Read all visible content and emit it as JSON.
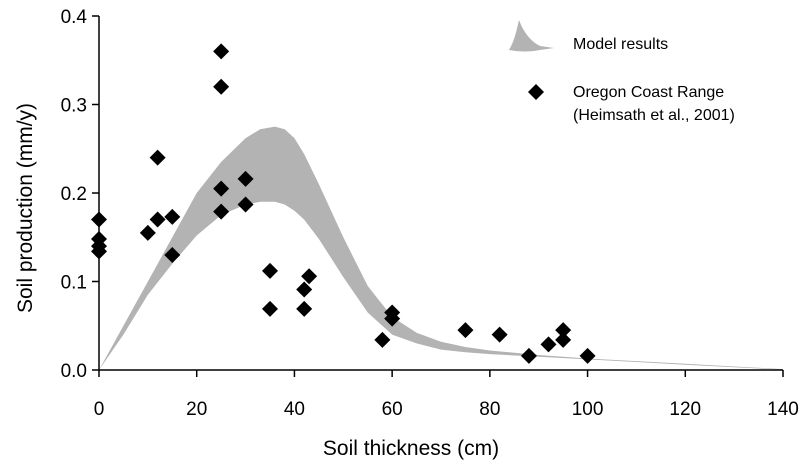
{
  "chart_data": {
    "type": "scatter",
    "xlabel": "Soil thickness (cm)",
    "ylabel": "Soil production (mm/y)",
    "xlim": [
      0,
      140
    ],
    "ylim": [
      0,
      0.4
    ],
    "xticks": [
      "0",
      "20",
      "40",
      "60",
      "80",
      "100",
      "120",
      "140"
    ],
    "yticks": [
      "0.0",
      "0.1",
      "0.2",
      "0.3",
      "0.4"
    ],
    "grid": false,
    "legend_position": "top-right",
    "series": [
      {
        "name": "Model results",
        "kind": "band",
        "color": "#b3b3b3",
        "x": [
          0,
          5,
          10,
          15,
          20,
          25,
          30,
          33,
          36,
          38,
          40,
          42,
          45,
          50,
          55,
          60,
          65,
          70,
          75,
          80,
          90,
          100,
          110,
          120,
          130,
          140
        ],
        "upper": [
          0,
          0.05,
          0.1,
          0.15,
          0.2,
          0.235,
          0.262,
          0.272,
          0.275,
          0.272,
          0.262,
          0.244,
          0.21,
          0.15,
          0.095,
          0.06,
          0.042,
          0.032,
          0.026,
          0.022,
          0.017,
          0.013,
          0.01,
          0.007,
          0.004,
          0.001
        ],
        "lower": [
          0,
          0.04,
          0.085,
          0.12,
          0.152,
          0.175,
          0.187,
          0.19,
          0.19,
          0.187,
          0.18,
          0.17,
          0.148,
          0.105,
          0.065,
          0.04,
          0.03,
          0.023,
          0.02,
          0.018,
          0.015,
          0.012,
          0.009,
          0.006,
          0.003,
          0.0005
        ]
      },
      {
        "name": "Oregon Coast Range\n(Heimsath et al., 2001)",
        "name_lines": [
          "Oregon Coast Range",
          "(Heimsath et al., 2001)"
        ],
        "kind": "points",
        "marker": "diamond",
        "color": "#000000",
        "points": [
          [
            0,
            0.17
          ],
          [
            0,
            0.148
          ],
          [
            0,
            0.14
          ],
          [
            0,
            0.134
          ],
          [
            10,
            0.155
          ],
          [
            12,
            0.24
          ],
          [
            12,
            0.17
          ],
          [
            15,
            0.173
          ],
          [
            15,
            0.13
          ],
          [
            25,
            0.36
          ],
          [
            25,
            0.32
          ],
          [
            25,
            0.205
          ],
          [
            25,
            0.179
          ],
          [
            30,
            0.216
          ],
          [
            30,
            0.187
          ],
          [
            35,
            0.112
          ],
          [
            35,
            0.069
          ],
          [
            42,
            0.091
          ],
          [
            42,
            0.069
          ],
          [
            43,
            0.106
          ],
          [
            58,
            0.034
          ],
          [
            60,
            0.065
          ],
          [
            60,
            0.058
          ],
          [
            75,
            0.045
          ],
          [
            82,
            0.04
          ],
          [
            88,
            0.016
          ],
          [
            92,
            0.029
          ],
          [
            95,
            0.045
          ],
          [
            95,
            0.034
          ],
          [
            100,
            0.016
          ]
        ]
      }
    ]
  }
}
